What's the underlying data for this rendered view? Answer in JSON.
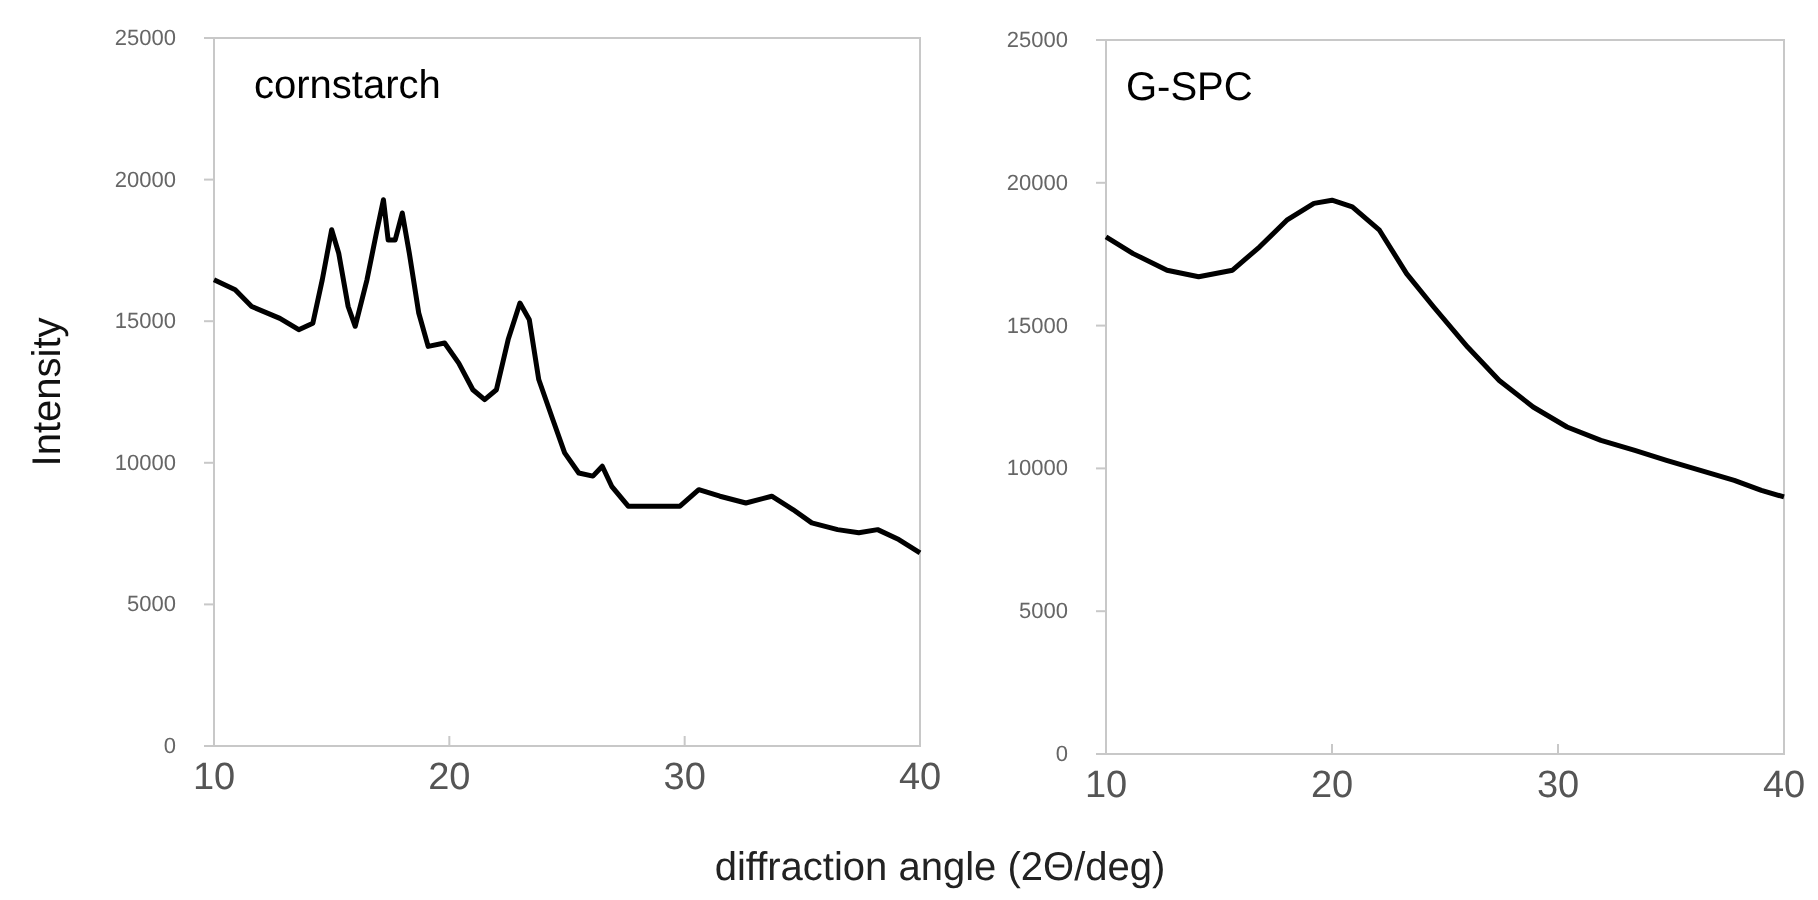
{
  "chart_data": [
    {
      "type": "line",
      "title": "cornstarch",
      "xlabel": "diffraction angle (2Θ/deg)",
      "ylabel": "Intensity",
      "xlim": [
        10,
        40
      ],
      "xticks": [
        10,
        20,
        30,
        40
      ],
      "ylim": [
        0,
        25000
      ],
      "yticks": [
        0,
        5000,
        10000,
        15000,
        20000,
        25000
      ],
      "grid": false,
      "series": [
        {
          "color": "#000000",
          "x": [
            10,
            10.9,
            11.6,
            12.8,
            13.6,
            14.2,
            14.6,
            15.0,
            15.3,
            15.7,
            16.0,
            16.5,
            16.9,
            17.2,
            17.4,
            17.7,
            18.0,
            18.3,
            18.7,
            19.1,
            19.8,
            20.4,
            21.0,
            21.5,
            22.0,
            22.5,
            23.0,
            23.4,
            23.8,
            24.4,
            24.9,
            25.5,
            26.1,
            26.5,
            26.9,
            27.6,
            28.6,
            29.8,
            30.6,
            31.5,
            32.6,
            33.7,
            34.6,
            35.4,
            36.5,
            37.4,
            38.2,
            39.1,
            40
          ],
          "values": [
            16460,
            16110,
            15520,
            15100,
            14700,
            14930,
            16460,
            18230,
            17400,
            15520,
            14820,
            16460,
            18110,
            19290,
            17870,
            17870,
            18820,
            17400,
            15290,
            14110,
            14230,
            13520,
            12580,
            12230,
            12580,
            14350,
            15640,
            15050,
            12940,
            11520,
            10350,
            9640,
            9530,
            9880,
            9170,
            8470,
            8470,
            8470,
            9050,
            8820,
            8580,
            8820,
            8350,
            7880,
            7640,
            7530,
            7640,
            7290,
            6820
          ]
        }
      ]
    },
    {
      "type": "line",
      "title": "G-SPC",
      "xlim": [
        10,
        40
      ],
      "xticks": [
        10,
        20,
        30,
        40
      ],
      "ylim": [
        0,
        25000
      ],
      "yticks": [
        0,
        5000,
        10000,
        15000,
        20000,
        25000
      ],
      "grid": false,
      "series": [
        {
          "color": "#000000",
          "x": [
            10,
            11.2,
            12.7,
            14.1,
            15.6,
            16.8,
            18.0,
            19.2,
            20.0,
            20.9,
            22.1,
            23.3,
            24.5,
            26.0,
            27.4,
            28.9,
            30.4,
            31.9,
            33.4,
            34.8,
            36.3,
            37.8,
            39.0,
            40
          ],
          "values": [
            18110,
            17520,
            16940,
            16710,
            16940,
            17760,
            18690,
            19280,
            19390,
            19160,
            18340,
            16820,
            15650,
            14250,
            13080,
            12150,
            11450,
            10980,
            10630,
            10280,
            9930,
            9580,
            9230,
            9000
          ]
        }
      ]
    }
  ]
}
